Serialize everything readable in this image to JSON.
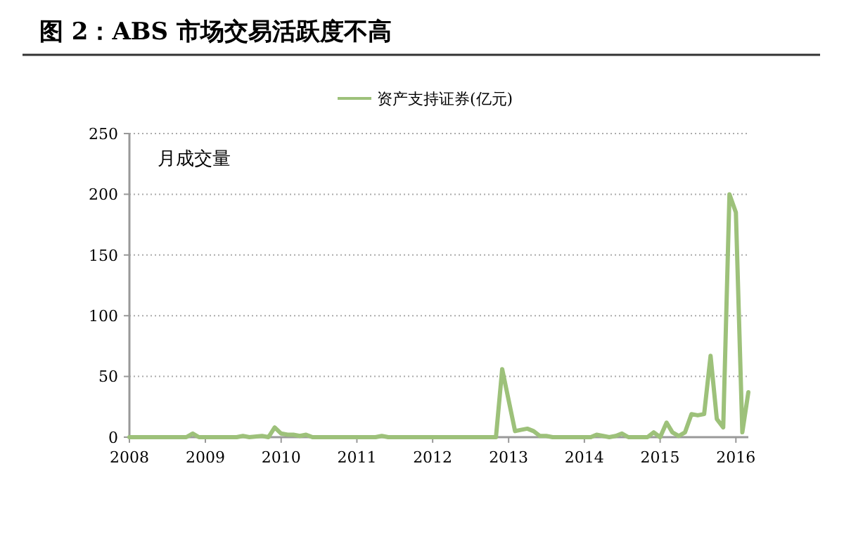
{
  "chart_data": {
    "type": "line",
    "title": "图 2：ABS 市场交易活跃度不高",
    "annotations": [
      "月成交量"
    ],
    "x": [
      "2008-01",
      "2008-10",
      "2008-11",
      "2008-12",
      "2009-06",
      "2009-07",
      "2009-08",
      "2009-10",
      "2009-11",
      "2009-12",
      "2010-01",
      "2010-02",
      "2010-03",
      "2010-04",
      "2010-05",
      "2010-06",
      "2011-04",
      "2011-05",
      "2011-06",
      "2012-11",
      "2012-12",
      "2013-02",
      "2013-03",
      "2013-04",
      "2013-05",
      "2013-06",
      "2013-07",
      "2013-08",
      "2014-02",
      "2014-03",
      "2014-04",
      "2014-05",
      "2014-06",
      "2014-07",
      "2014-08",
      "2014-09",
      "2014-11",
      "2014-12",
      "2015-01",
      "2015-02",
      "2015-03",
      "2015-04",
      "2015-05",
      "2015-06",
      "2015-07",
      "2015-08",
      "2015-09",
      "2015-10",
      "2015-11",
      "2015-12",
      "2016-01",
      "2016-02",
      "2016-03"
    ],
    "series": [
      {
        "name": "资产支持证券(亿元)",
        "color": "#9dc17a",
        "values": [
          0,
          0,
          3,
          0,
          0,
          1,
          0,
          1,
          0,
          8,
          3,
          2,
          2,
          1,
          2,
          0,
          0,
          1,
          0,
          0,
          56,
          5,
          6,
          7,
          5,
          1,
          1,
          0,
          0,
          2,
          1,
          0,
          1,
          3,
          0,
          0,
          0,
          4,
          0,
          12,
          4,
          1,
          4,
          19,
          18,
          19,
          67,
          15,
          8,
          200,
          185,
          4,
          37
        ]
      }
    ],
    "xlim": [
      "2008-01",
      "2016-03"
    ],
    "xticks": [
      "2008",
      "2009",
      "2010",
      "2011",
      "2012",
      "2013",
      "2014",
      "2015",
      "2016"
    ],
    "ylim": [
      0,
      250
    ],
    "yticks": [
      0,
      50,
      100,
      150,
      200,
      250
    ],
    "grid": "y",
    "legend": "top",
    "marker": "none",
    "line_style": "solid"
  }
}
